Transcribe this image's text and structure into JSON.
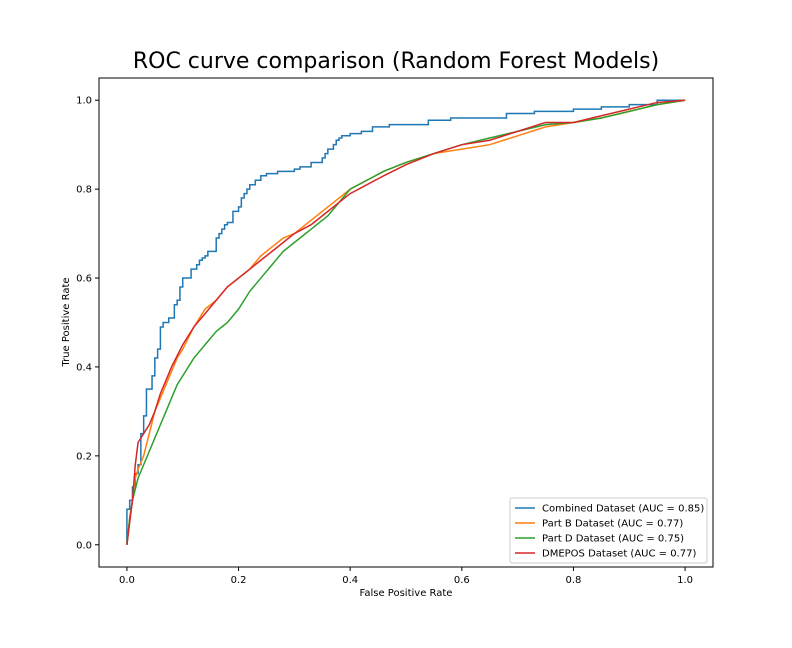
{
  "chart_data": {
    "type": "line",
    "title": "ROC curve comparison (Random Forest Models)",
    "xlabel": "False Positive Rate",
    "ylabel": "True Positive Rate",
    "xlim": [
      -0.05,
      1.05
    ],
    "ylim": [
      -0.05,
      1.05
    ],
    "xticks": [
      "0.0",
      "0.2",
      "0.4",
      "0.6",
      "0.8",
      "1.0"
    ],
    "yticks": [
      "0.0",
      "0.2",
      "0.4",
      "0.6",
      "0.8",
      "1.0"
    ],
    "grid": false,
    "legend_position": "lower right",
    "series": [
      {
        "name": "Combined Dataset (AUC = 0.85)",
        "color": "#1f77b4",
        "x": [
          0,
          0,
          0.005,
          0.005,
          0.01,
          0.01,
          0.015,
          0.015,
          0.02,
          0.02,
          0.025,
          0.025,
          0.03,
          0.03,
          0.035,
          0.035,
          0.045,
          0.045,
          0.05,
          0.05,
          0.055,
          0.055,
          0.06,
          0.06,
          0.065,
          0.065,
          0.075,
          0.075,
          0.085,
          0.085,
          0.09,
          0.09,
          0.095,
          0.095,
          0.1,
          0.1,
          0.115,
          0.115,
          0.125,
          0.125,
          0.13,
          0.13,
          0.135,
          0.135,
          0.14,
          0.14,
          0.145,
          0.145,
          0.16,
          0.16,
          0.165,
          0.165,
          0.17,
          0.17,
          0.175,
          0.175,
          0.18,
          0.18,
          0.19,
          0.19,
          0.2,
          0.2,
          0.205,
          0.205,
          0.21,
          0.21,
          0.215,
          0.215,
          0.22,
          0.22,
          0.23,
          0.23,
          0.24,
          0.24,
          0.25,
          0.25,
          0.27,
          0.27,
          0.3,
          0.3,
          0.31,
          0.31,
          0.33,
          0.33,
          0.35,
          0.35,
          0.355,
          0.355,
          0.36,
          0.36,
          0.37,
          0.37,
          0.375,
          0.375,
          0.38,
          0.38,
          0.385,
          0.385,
          0.4,
          0.4,
          0.42,
          0.42,
          0.44,
          0.44,
          0.47,
          0.47,
          0.54,
          0.54,
          0.58,
          0.58,
          0.68,
          0.68,
          0.73,
          0.73,
          0.8,
          0.8,
          0.85,
          0.85,
          0.9,
          0.9,
          0.95,
          0.95,
          1.0
        ],
        "y": [
          0,
          0.08,
          0.08,
          0.1,
          0.1,
          0.13,
          0.13,
          0.16,
          0.16,
          0.18,
          0.18,
          0.25,
          0.25,
          0.29,
          0.29,
          0.35,
          0.35,
          0.38,
          0.38,
          0.42,
          0.42,
          0.44,
          0.44,
          0.49,
          0.49,
          0.5,
          0.5,
          0.51,
          0.51,
          0.54,
          0.54,
          0.55,
          0.55,
          0.58,
          0.58,
          0.6,
          0.6,
          0.62,
          0.62,
          0.63,
          0.63,
          0.64,
          0.64,
          0.645,
          0.645,
          0.65,
          0.65,
          0.66,
          0.66,
          0.69,
          0.69,
          0.7,
          0.7,
          0.71,
          0.71,
          0.72,
          0.72,
          0.725,
          0.725,
          0.75,
          0.75,
          0.76,
          0.76,
          0.78,
          0.78,
          0.79,
          0.79,
          0.8,
          0.8,
          0.81,
          0.81,
          0.82,
          0.82,
          0.83,
          0.83,
          0.835,
          0.835,
          0.84,
          0.84,
          0.845,
          0.845,
          0.85,
          0.85,
          0.86,
          0.86,
          0.87,
          0.87,
          0.88,
          0.88,
          0.89,
          0.89,
          0.9,
          0.9,
          0.91,
          0.91,
          0.915,
          0.915,
          0.92,
          0.92,
          0.925,
          0.925,
          0.93,
          0.93,
          0.94,
          0.94,
          0.945,
          0.945,
          0.955,
          0.955,
          0.96,
          0.96,
          0.97,
          0.97,
          0.975,
          0.975,
          0.98,
          0.98,
          0.985,
          0.985,
          0.99,
          0.99,
          1.0,
          1.0
        ]
      },
      {
        "name": "Part B Dataset (AUC = 0.77)",
        "color": "#ff7f0e",
        "x": [
          0,
          0.005,
          0.01,
          0.015,
          0.02,
          0.03,
          0.04,
          0.05,
          0.06,
          0.07,
          0.08,
          0.09,
          0.1,
          0.12,
          0.14,
          0.16,
          0.18,
          0.2,
          0.22,
          0.24,
          0.26,
          0.28,
          0.3,
          0.32,
          0.34,
          0.36,
          0.38,
          0.4,
          0.43,
          0.46,
          0.5,
          0.55,
          0.6,
          0.65,
          0.7,
          0.75,
          0.8,
          0.85,
          0.9,
          0.95,
          1.0
        ],
        "y": [
          0,
          0.06,
          0.1,
          0.15,
          0.17,
          0.2,
          0.25,
          0.3,
          0.33,
          0.36,
          0.39,
          0.42,
          0.44,
          0.49,
          0.53,
          0.55,
          0.58,
          0.6,
          0.62,
          0.65,
          0.67,
          0.69,
          0.7,
          0.72,
          0.74,
          0.76,
          0.78,
          0.8,
          0.82,
          0.84,
          0.86,
          0.88,
          0.89,
          0.9,
          0.92,
          0.94,
          0.95,
          0.96,
          0.975,
          0.99,
          1.0
        ]
      },
      {
        "name": "Part D Dataset (AUC = 0.75)",
        "color": "#2ca02c",
        "x": [
          0,
          0.005,
          0.01,
          0.02,
          0.03,
          0.04,
          0.05,
          0.06,
          0.07,
          0.08,
          0.09,
          0.1,
          0.12,
          0.14,
          0.16,
          0.18,
          0.2,
          0.22,
          0.24,
          0.26,
          0.28,
          0.3,
          0.33,
          0.36,
          0.38,
          0.4,
          0.43,
          0.46,
          0.5,
          0.55,
          0.6,
          0.65,
          0.7,
          0.75,
          0.8,
          0.85,
          0.9,
          0.95,
          1.0
        ],
        "y": [
          0,
          0.06,
          0.1,
          0.15,
          0.18,
          0.21,
          0.24,
          0.27,
          0.3,
          0.33,
          0.36,
          0.38,
          0.42,
          0.45,
          0.48,
          0.5,
          0.53,
          0.57,
          0.6,
          0.63,
          0.66,
          0.68,
          0.71,
          0.74,
          0.77,
          0.8,
          0.82,
          0.84,
          0.86,
          0.88,
          0.9,
          0.915,
          0.93,
          0.945,
          0.95,
          0.96,
          0.975,
          0.99,
          1.0
        ]
      },
      {
        "name": "DMEPOS Dataset (AUC = 0.77)",
        "color": "#d62728",
        "x": [
          0,
          0.005,
          0.01,
          0.015,
          0.02,
          0.03,
          0.04,
          0.05,
          0.06,
          0.07,
          0.08,
          0.1,
          0.12,
          0.14,
          0.16,
          0.18,
          0.2,
          0.22,
          0.24,
          0.26,
          0.28,
          0.3,
          0.33,
          0.36,
          0.38,
          0.4,
          0.43,
          0.46,
          0.5,
          0.55,
          0.6,
          0.65,
          0.7,
          0.75,
          0.8,
          0.85,
          0.9,
          0.95,
          1.0
        ],
        "y": [
          0,
          0.05,
          0.1,
          0.18,
          0.23,
          0.25,
          0.27,
          0.3,
          0.34,
          0.37,
          0.4,
          0.45,
          0.49,
          0.52,
          0.55,
          0.58,
          0.6,
          0.62,
          0.64,
          0.66,
          0.68,
          0.7,
          0.72,
          0.75,
          0.77,
          0.79,
          0.81,
          0.83,
          0.855,
          0.88,
          0.9,
          0.91,
          0.93,
          0.95,
          0.95,
          0.965,
          0.98,
          0.995,
          1.0
        ]
      }
    ]
  }
}
